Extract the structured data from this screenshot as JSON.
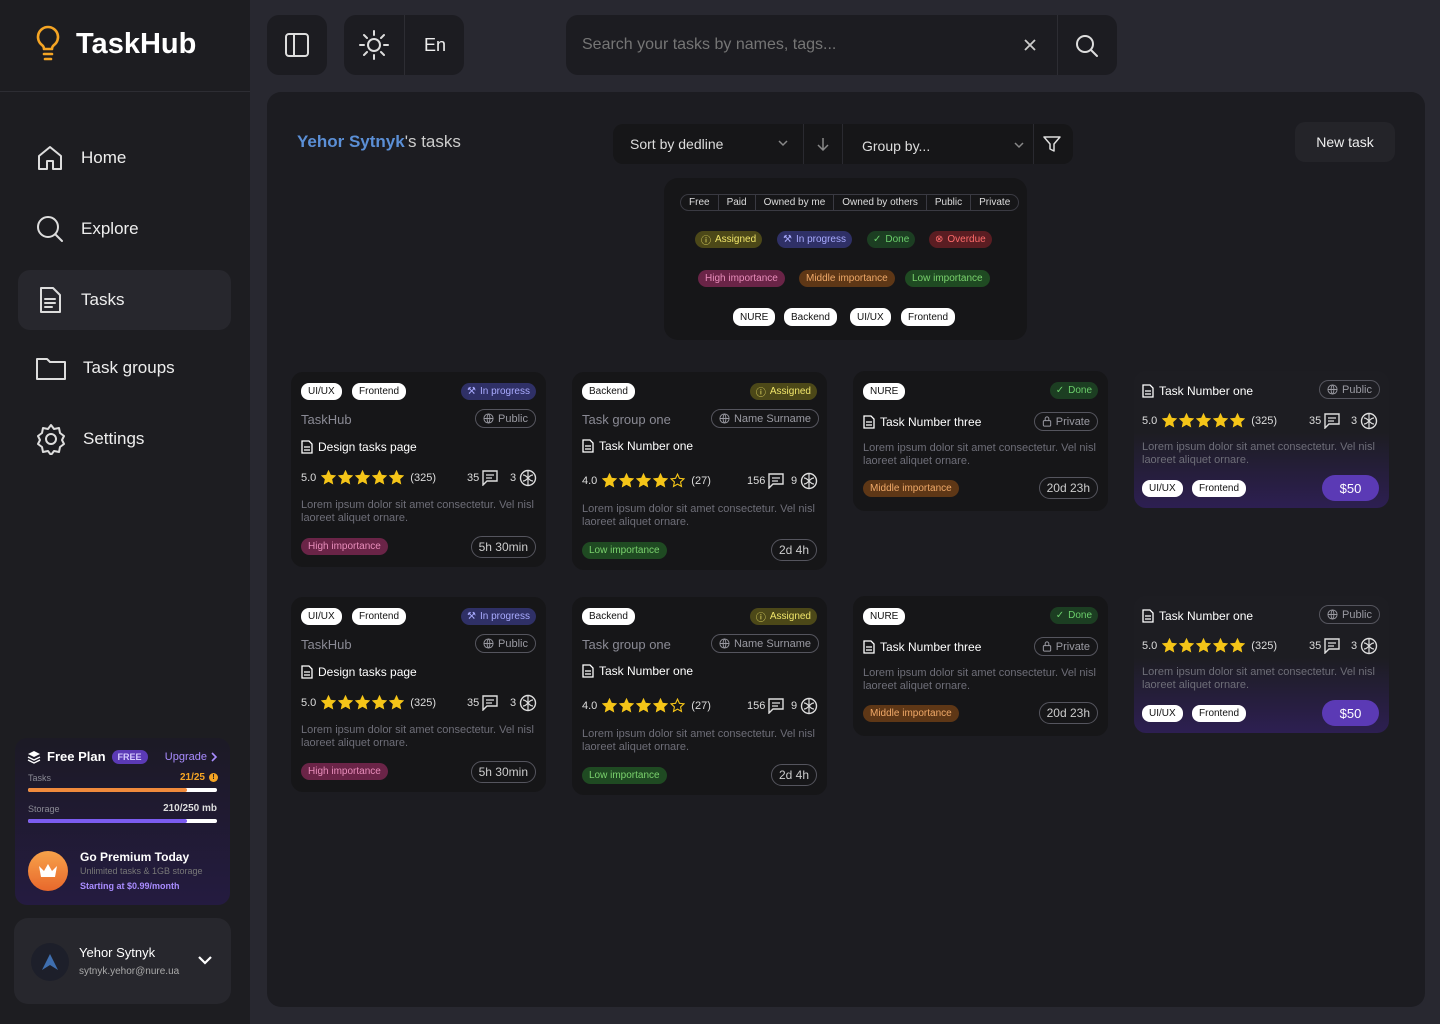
{
  "app": {
    "name": "TaskHub"
  },
  "sidebar": {
    "items": [
      {
        "label": "Home",
        "icon": "home-icon"
      },
      {
        "label": "Explore",
        "icon": "search-icon"
      },
      {
        "label": "Tasks",
        "icon": "document-icon"
      },
      {
        "label": "Task groups",
        "icon": "folder-icon"
      },
      {
        "label": "Settings",
        "icon": "gear-icon"
      }
    ]
  },
  "plan": {
    "title": "Free Plan",
    "badge": "FREE",
    "upgrade": "Upgrade",
    "tasks_label": "Tasks",
    "tasks_value": "21/25",
    "tasks_fraction": 0.84,
    "storage_label": "Storage",
    "storage_value": "210/250 mb",
    "storage_fraction": 0.84,
    "premium_title": "Go Premium Today",
    "premium_desc": "Unlimited tasks & 1GB storage",
    "premium_price": "Starting at $0.99/month"
  },
  "user": {
    "name": "Yehor Sytnyk",
    "email": "sytnyk.yehor@nure.ua"
  },
  "topbar": {
    "lang": "En",
    "search_placeholder": "Search your tasks by names, tags..."
  },
  "main": {
    "owner": "Yehor Sytnyk",
    "owner_suffix": "'s tasks",
    "sort_label": "Sort by dedline",
    "group_label": "Group by...",
    "new_task": "New task"
  },
  "filters": {
    "ownership": [
      "Free",
      "Paid",
      "Owned by me",
      "Owned by others",
      "Public",
      "Private"
    ],
    "statuses": [
      "Assigned",
      "In progress",
      "Done",
      "Overdue"
    ],
    "importance": [
      "High importance",
      "Middle importance",
      "Low importance"
    ],
    "tags": [
      "NURE",
      "Backend",
      "UI/UX",
      "Frontend"
    ]
  },
  "cards": [
    {
      "tags": [
        "UI/UX",
        "Frontend"
      ],
      "status": "In progress",
      "group": "TaskHub",
      "visibility": "Public",
      "title": "Design tasks page",
      "rating": "5.0",
      "stars": 5,
      "reviews": "(325)",
      "comments": "35",
      "brains": "3",
      "desc": "Lorem ipsum dolor sit amet consectetur. Vel nisl laoreet aliquet ornare.",
      "importance": "High importance",
      "time": "5h 30min"
    },
    {
      "tags": [
        "Backend"
      ],
      "status": "Assigned",
      "group": "Task group one",
      "owner": "Name Surname",
      "title": "Task Number one",
      "rating": "4.0",
      "stars": 4,
      "reviews": "(27)",
      "comments": "156",
      "brains": "9",
      "desc": "Lorem ipsum dolor sit amet consectetur. Vel nisl laoreet aliquet ornare.",
      "importance": "Low importance",
      "time": "2d 4h"
    },
    {
      "tags": [
        "NURE"
      ],
      "status": "Done",
      "visibility": "Private",
      "title": "Task Number three",
      "desc": "Lorem ipsum dolor sit amet consectetur. Vel nisl laoreet aliquet ornare.",
      "importance": "Middle importance",
      "time": "20d 23h"
    },
    {
      "title": "Task Number one",
      "visibility": "Public",
      "rating": "5.0",
      "stars": 5,
      "reviews": "(325)",
      "comments": "35",
      "brains": "3",
      "desc": "Lorem ipsum dolor sit amet consectetur. Vel nisl laoreet aliquet ornare.",
      "tags": [
        "UI/UX",
        "Frontend"
      ],
      "price": "$50"
    }
  ]
}
